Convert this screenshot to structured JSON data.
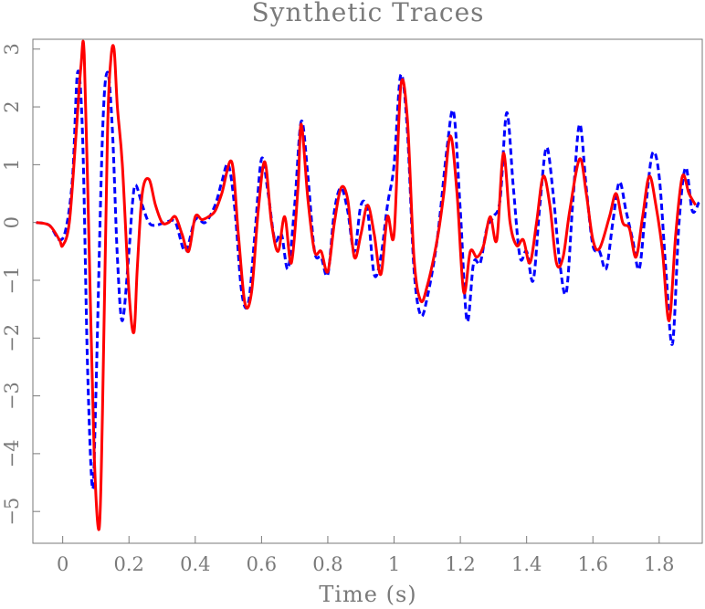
{
  "chart_data": {
    "type": "line",
    "title": "Synthetic Traces",
    "xlabel": "Time (s)",
    "ylabel": "",
    "xlim": [
      -0.09,
      1.93
    ],
    "ylim": [
      -5.55,
      3.17
    ],
    "xticks": [
      0,
      0.2,
      0.4,
      0.6,
      0.8,
      1,
      1.2,
      1.4,
      1.6,
      1.8
    ],
    "xtick_labels": [
      "0",
      "0.2",
      "0.4",
      "0.6",
      "0.8",
      "1",
      "1.2",
      "1.4",
      "1.6",
      "1.8"
    ],
    "yticks": [
      3,
      2,
      1,
      0,
      -1,
      -2,
      -3,
      -4,
      -5
    ],
    "ytick_labels": [
      "3",
      "2",
      "1",
      "0",
      "−1",
      "−2",
      "−3",
      "−4",
      "−5"
    ],
    "grid": false,
    "series": [
      {
        "color": "#0000ff",
        "style": "dashed",
        "x": [
          -0.08,
          -0.04,
          -0.01,
          0.01,
          0.03,
          0.045,
          0.06,
          0.075,
          0.09,
          0.1,
          0.12,
          0.135,
          0.15,
          0.165,
          0.18,
          0.2,
          0.21,
          0.22,
          0.24,
          0.26,
          0.28,
          0.31,
          0.34,
          0.37,
          0.4,
          0.43,
          0.46,
          0.48,
          0.5,
          0.52,
          0.54,
          0.56,
          0.58,
          0.6,
          0.62,
          0.64,
          0.66,
          0.68,
          0.7,
          0.72,
          0.74,
          0.76,
          0.78,
          0.8,
          0.82,
          0.84,
          0.86,
          0.88,
          0.9,
          0.92,
          0.94,
          0.96,
          0.98,
          1.0,
          1.02,
          1.04,
          1.06,
          1.08,
          1.1,
          1.13,
          1.16,
          1.18,
          1.2,
          1.22,
          1.24,
          1.26,
          1.28,
          1.3,
          1.32,
          1.34,
          1.36,
          1.38,
          1.4,
          1.42,
          1.44,
          1.46,
          1.48,
          1.5,
          1.52,
          1.54,
          1.56,
          1.58,
          1.6,
          1.62,
          1.64,
          1.66,
          1.68,
          1.7,
          1.72,
          1.74,
          1.76,
          1.78,
          1.8,
          1.82,
          1.84,
          1.86,
          1.88,
          1.9,
          1.92
        ],
        "y": [
          0,
          -0.05,
          -0.3,
          -0.1,
          0.8,
          2.6,
          1.5,
          -2.5,
          -4.6,
          -3.0,
          1.5,
          2.6,
          1.6,
          -0.6,
          -1.7,
          -0.5,
          0.3,
          0.65,
          0.3,
          0.0,
          -0.05,
          0.0,
          0.0,
          -0.5,
          0.05,
          0.0,
          0.3,
          0.7,
          1.0,
          0.2,
          -1.2,
          -1.4,
          -0.2,
          1.1,
          0.5,
          -0.3,
          -0.2,
          -0.8,
          0.3,
          1.75,
          0.8,
          -0.5,
          -0.6,
          -0.9,
          0.2,
          0.6,
          0.2,
          -0.5,
          0.3,
          0.2,
          -0.9,
          -0.6,
          0.3,
          1.0,
          2.55,
          1.6,
          -0.8,
          -1.6,
          -1.3,
          -0.3,
          1.3,
          1.9,
          0.2,
          -1.7,
          -0.7,
          -0.7,
          -0.1,
          0.1,
          0.4,
          1.9,
          0.6,
          -0.6,
          -0.5,
          -1.0,
          0.3,
          1.3,
          0.5,
          -0.7,
          -1.2,
          0.4,
          1.7,
          0.6,
          -0.4,
          -0.5,
          -0.8,
          0.0,
          0.7,
          0.2,
          -0.3,
          -0.8,
          0.3,
          1.2,
          0.8,
          -0.8,
          -2.1,
          0.0,
          0.95,
          0.2,
          0.35
        ]
      },
      {
        "color": "#ff0000",
        "style": "solid",
        "x": [
          -0.08,
          -0.04,
          -0.01,
          0.0,
          0.02,
          0.04,
          0.055,
          0.065,
          0.08,
          0.095,
          0.11,
          0.12,
          0.135,
          0.145,
          0.155,
          0.165,
          0.18,
          0.2,
          0.215,
          0.225,
          0.24,
          0.26,
          0.28,
          0.3,
          0.32,
          0.34,
          0.36,
          0.38,
          0.4,
          0.42,
          0.44,
          0.46,
          0.48,
          0.51,
          0.53,
          0.55,
          0.57,
          0.59,
          0.61,
          0.63,
          0.65,
          0.67,
          0.69,
          0.71,
          0.72,
          0.74,
          0.76,
          0.78,
          0.8,
          0.82,
          0.84,
          0.86,
          0.88,
          0.9,
          0.92,
          0.94,
          0.96,
          0.98,
          1.0,
          1.02,
          1.04,
          1.06,
          1.08,
          1.1,
          1.13,
          1.15,
          1.17,
          1.19,
          1.21,
          1.23,
          1.25,
          1.27,
          1.29,
          1.31,
          1.33,
          1.35,
          1.37,
          1.39,
          1.41,
          1.43,
          1.45,
          1.47,
          1.49,
          1.51,
          1.53,
          1.56,
          1.58,
          1.6,
          1.62,
          1.65,
          1.67,
          1.69,
          1.71,
          1.73,
          1.75,
          1.77,
          1.79,
          1.81,
          1.83,
          1.85,
          1.87,
          1.89,
          1.91
        ],
        "y": [
          0,
          -0.05,
          -0.3,
          -0.4,
          0.0,
          1.5,
          2.7,
          2.9,
          -0.5,
          -4.0,
          -5.3,
          -3.3,
          1.5,
          2.8,
          3.0,
          2.0,
          1.0,
          -1.2,
          -1.9,
          -0.8,
          0.5,
          0.75,
          0.3,
          0.0,
          0.0,
          0.1,
          -0.2,
          -0.5,
          0.1,
          0.05,
          0.1,
          0.2,
          0.5,
          1.05,
          -0.2,
          -1.4,
          -1.2,
          0.2,
          1.05,
          0.0,
          -0.5,
          0.1,
          -0.7,
          0.6,
          1.7,
          0.4,
          -0.5,
          -0.5,
          -0.85,
          0.0,
          0.6,
          0.4,
          -0.6,
          -0.2,
          0.3,
          -0.2,
          -0.9,
          0.1,
          -0.2,
          2.35,
          1.8,
          -0.6,
          -1.35,
          -1.1,
          -0.3,
          0.5,
          1.5,
          0.5,
          -1.2,
          -0.5,
          -0.6,
          -0.4,
          0.1,
          -0.3,
          1.2,
          0.0,
          -0.4,
          -0.3,
          -0.7,
          0.0,
          0.8,
          0.3,
          -0.7,
          -0.6,
          0.2,
          1.1,
          0.5,
          -0.3,
          -0.45,
          0.1,
          0.5,
          0.0,
          -0.1,
          -0.6,
          0.1,
          0.8,
          0.3,
          -0.5,
          -1.7,
          -0.2,
          0.8,
          0.5,
          0.3
        ]
      }
    ]
  }
}
